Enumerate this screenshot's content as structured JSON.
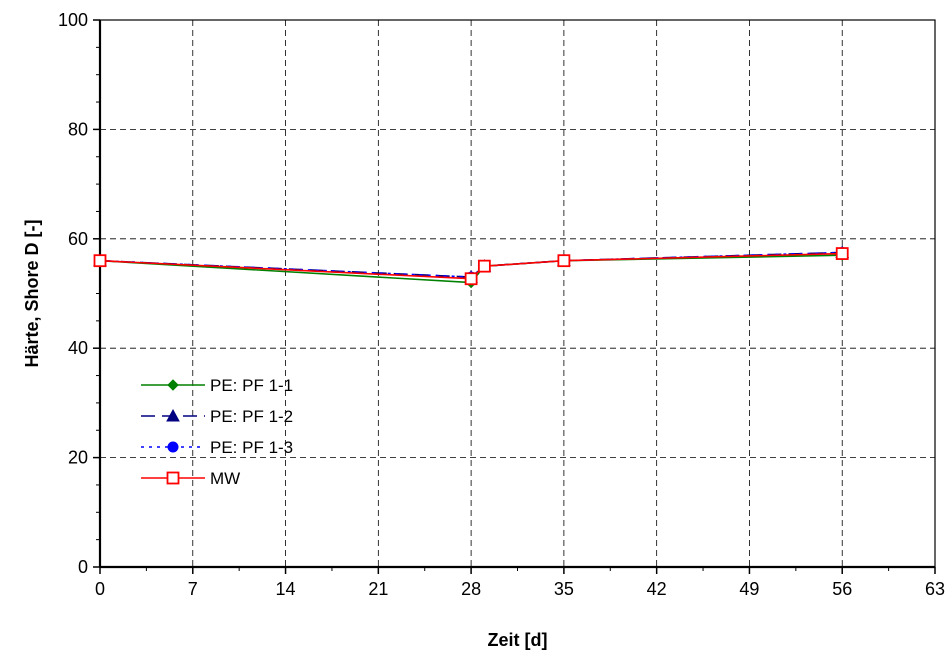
{
  "chart_data": {
    "type": "line",
    "title": "",
    "xlabel": "Zeit [d]",
    "ylabel": "Härte, Shore D [-]",
    "xlim": [
      0,
      63
    ],
    "ylim": [
      0,
      100
    ],
    "xticks": [
      0,
      7,
      14,
      21,
      28,
      35,
      42,
      49,
      56,
      63
    ],
    "yticks": [
      0,
      20,
      40,
      60,
      80,
      100
    ],
    "grid": true,
    "legend_position": "lower-left",
    "series": [
      {
        "name": "PE: PF 1-1",
        "x": [
          0,
          28,
          29,
          35,
          56
        ],
        "values": [
          56,
          52,
          55,
          56,
          57
        ],
        "color": "#008000",
        "line_style": "solid",
        "marker": "diamond"
      },
      {
        "name": "PE: PF 1-2",
        "x": [
          0,
          28,
          29,
          35,
          56
        ],
        "values": [
          56,
          53,
          55,
          56,
          57.5
        ],
        "color": "#000080",
        "line_style": "dashed",
        "marker": "triangle"
      },
      {
        "name": "PE: PF 1-3",
        "x": [
          0,
          28,
          29,
          35,
          56
        ],
        "values": [
          56,
          53,
          55,
          56,
          57.5
        ],
        "color": "#0000ff",
        "line_style": "dotted",
        "marker": "circle"
      },
      {
        "name": "MW",
        "x": [
          0,
          28,
          29,
          35,
          56
        ],
        "values": [
          56,
          52.7,
          55,
          56,
          57.3
        ],
        "color": "#ff0000",
        "line_style": "solid",
        "marker": "square-open"
      }
    ]
  }
}
